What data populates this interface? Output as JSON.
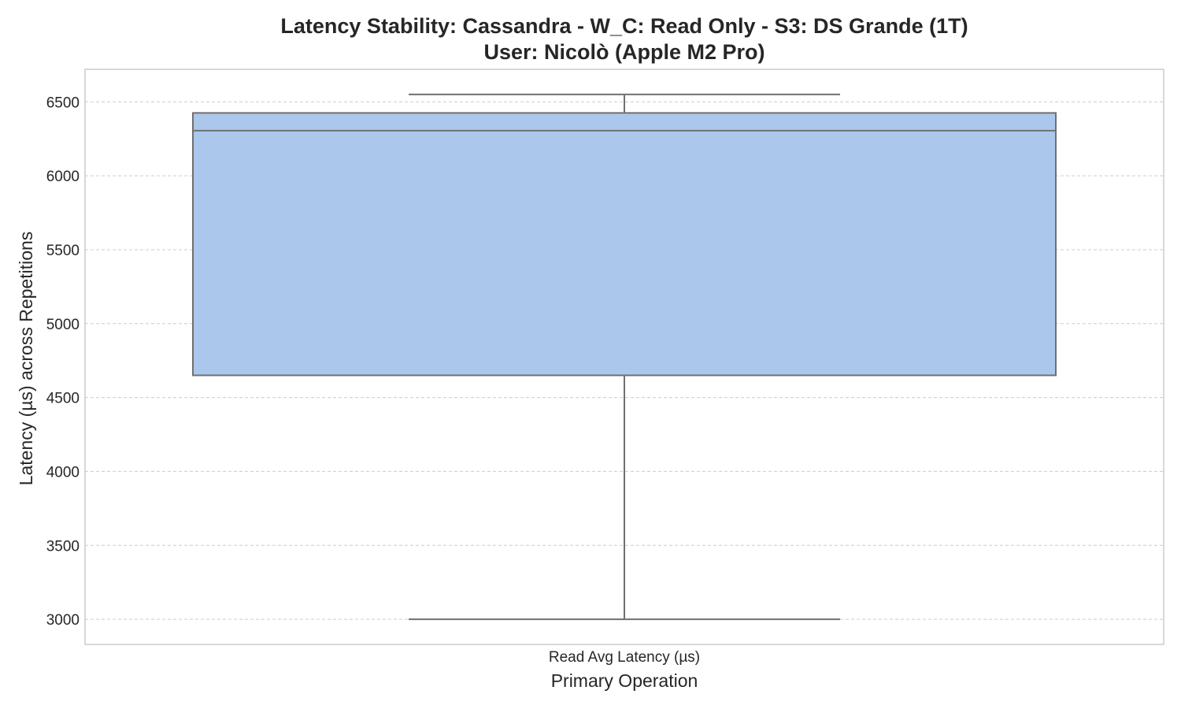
{
  "chart_data": {
    "type": "box",
    "title_line1": "Latency Stability: Cassandra - W_C: Read Only - S3: DS Grande (1T)",
    "title_line2": "User: Nicolò (Apple M2 Pro)",
    "xlabel": "Primary Operation",
    "ylabel": "Latency (µs) across Repetitions",
    "categories": [
      "Read Avg Latency (µs)"
    ],
    "boxes": [
      {
        "category": "Read Avg Latency (µs)",
        "whisker_low": 3000,
        "q1": 4650,
        "median": 6305,
        "q3": 6425,
        "whisker_high": 6550
      }
    ],
    "ylim": [
      2830,
      6720
    ],
    "yticks": [
      3000,
      3500,
      4000,
      4500,
      5000,
      5500,
      6000,
      6500
    ],
    "grid": true,
    "box_color": "#abc8ec",
    "line_color": "#707070"
  }
}
